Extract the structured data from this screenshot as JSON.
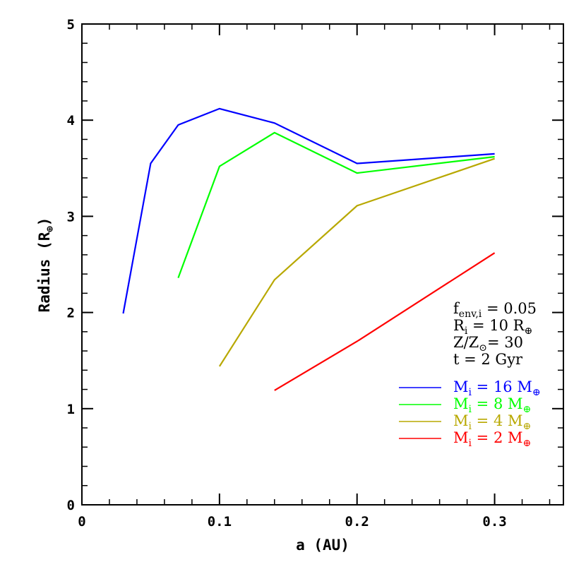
{
  "chart_data": {
    "type": "line",
    "xlabel": "a (AU)",
    "ylabel_main": "Radius (R",
    "ylabel_sub": "⊕",
    "ylabel_close": ")",
    "xlim": [
      0,
      0.35
    ],
    "ylim": [
      0,
      5
    ],
    "x_ticks": [
      {
        "value": 0,
        "label": "0"
      },
      {
        "value": 0.1,
        "label": "0.1"
      },
      {
        "value": 0.2,
        "label": "0.2"
      },
      {
        "value": 0.3,
        "label": "0.3"
      }
    ],
    "y_ticks": [
      {
        "value": 0,
        "label": "0"
      },
      {
        "value": 1,
        "label": "1"
      },
      {
        "value": 2,
        "label": "2"
      },
      {
        "value": 3,
        "label": "3"
      },
      {
        "value": 4,
        "label": "4"
      },
      {
        "value": 5,
        "label": "5"
      }
    ],
    "x_minor_step": 0.02,
    "y_minor_step": 0.2,
    "annotations": [
      {
        "main": "f",
        "sub": "env,i",
        "rest": " = 0.05"
      },
      {
        "main": "R",
        "sub": "i",
        "rest": " = 10 R",
        "rest_sub": "⊕"
      },
      {
        "main": "Z/Z",
        "sub": "⊙",
        "rest": "= 30"
      },
      {
        "main": "t = 2 Gyr",
        "sub": "",
        "rest": ""
      }
    ],
    "series": [
      {
        "name": "M_i = 16 M_⊕",
        "legend_main": "M",
        "legend_sub": "i",
        "legend_rest": " = 16 M",
        "legend_rest_sub": "⊕",
        "color": "#0000ff",
        "x": [
          0.03,
          0.05,
          0.07,
          0.1,
          0.14,
          0.2,
          0.3
        ],
        "y": [
          1.99,
          3.55,
          3.95,
          4.12,
          3.97,
          3.55,
          3.65
        ]
      },
      {
        "name": "M_i = 8 M_⊕",
        "legend_main": "M",
        "legend_sub": "i",
        "legend_rest": " = 8 M",
        "legend_rest_sub": "⊕",
        "color": "#00ff00",
        "x": [
          0.07,
          0.1,
          0.14,
          0.2,
          0.3
        ],
        "y": [
          2.36,
          3.52,
          3.87,
          3.45,
          3.62
        ]
      },
      {
        "name": "M_i = 4 M_⊕",
        "legend_main": "M",
        "legend_sub": "i",
        "legend_rest": " = 4 M",
        "legend_rest_sub": "⊕",
        "color": "#b8a800",
        "x": [
          0.1,
          0.14,
          0.2,
          0.3
        ],
        "y": [
          1.44,
          2.34,
          3.11,
          3.6
        ]
      },
      {
        "name": "M_i = 2 M_⊕",
        "legend_main": "M",
        "legend_sub": "i",
        "legend_rest": " = 2 M",
        "legend_rest_sub": "⊕",
        "color": "#ff0000",
        "x": [
          0.14,
          0.2,
          0.3
        ],
        "y": [
          1.19,
          1.7,
          2.62
        ]
      }
    ]
  }
}
